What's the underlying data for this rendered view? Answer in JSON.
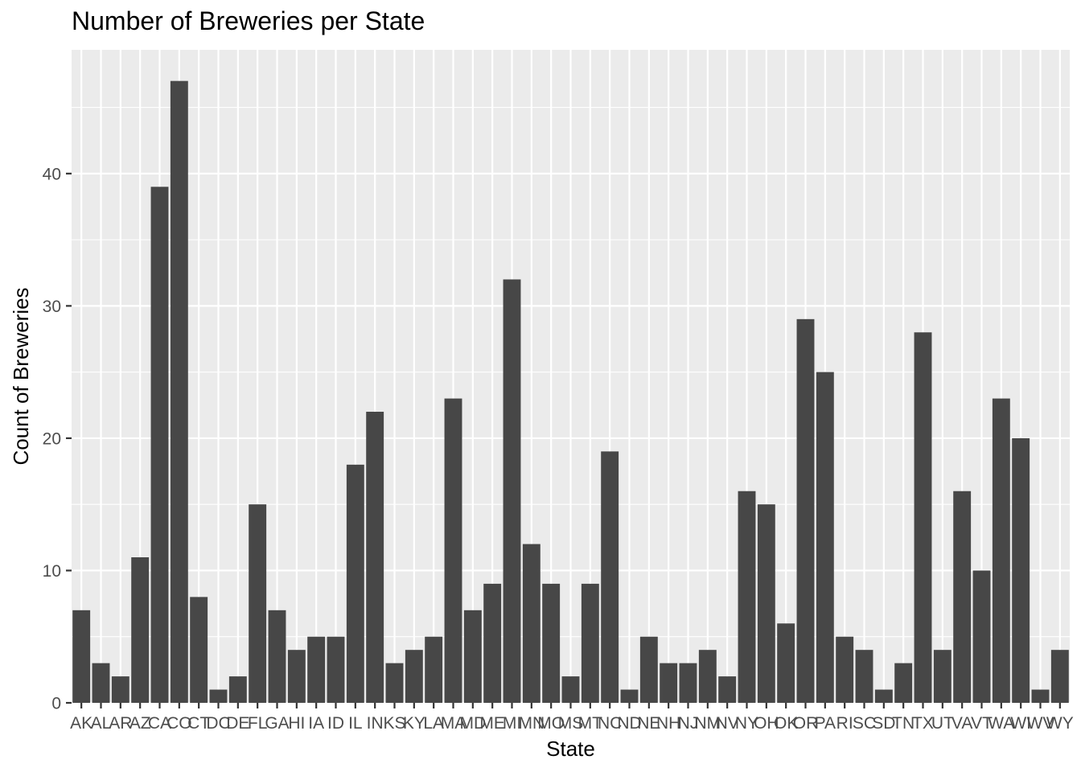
{
  "chart_data": {
    "type": "bar",
    "title": "Number of Breweries per State",
    "xlabel": "State",
    "ylabel": "Count of Breweries",
    "categories": [
      "AK",
      "AL",
      "AR",
      "AZ",
      "CA",
      "CO",
      "CT",
      "DC",
      "DE",
      "FL",
      "GA",
      "HI",
      "IA",
      "ID",
      "IL",
      "IN",
      "KS",
      "KY",
      "LA",
      "MA",
      "MD",
      "ME",
      "MI",
      "MN",
      "MO",
      "MS",
      "MT",
      "NC",
      "ND",
      "NE",
      "NH",
      "NJ",
      "NM",
      "NV",
      "NY",
      "OH",
      "OK",
      "OR",
      "PA",
      "RI",
      "SC",
      "SD",
      "TN",
      "TX",
      "UT",
      "VA",
      "VT",
      "WA",
      "WI",
      "WV",
      "WY"
    ],
    "values": [
      7,
      3,
      2,
      11,
      39,
      47,
      8,
      1,
      2,
      15,
      7,
      4,
      5,
      5,
      18,
      22,
      3,
      4,
      5,
      23,
      7,
      9,
      32,
      12,
      9,
      2,
      9,
      19,
      1,
      5,
      3,
      3,
      4,
      2,
      16,
      15,
      6,
      29,
      25,
      5,
      4,
      1,
      3,
      28,
      4,
      16,
      10,
      23,
      20,
      1,
      4
    ],
    "ylim": [
      0,
      49.35
    ],
    "yticks": [
      0,
      10,
      20,
      30,
      40
    ],
    "grid": true,
    "colors": {
      "bar": "#474747",
      "panel": "#ebebeb",
      "grid": "#ffffff",
      "tick": "#333333",
      "tick_label": "#4d4d4d"
    }
  }
}
